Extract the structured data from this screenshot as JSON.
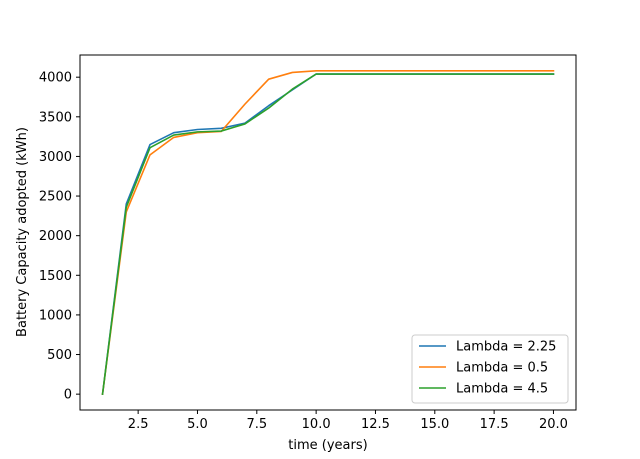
{
  "chart_data": {
    "type": "line",
    "title": "",
    "xlabel": "time (years)",
    "ylabel": "Battery Capacity adopted (kWh)",
    "xlim": [
      0.05,
      20.95
    ],
    "ylim": [
      -200,
      4280
    ],
    "xticks": [
      2.5,
      5.0,
      7.5,
      10.0,
      12.5,
      15.0,
      17.5,
      20.0
    ],
    "xtick_labels": [
      "2.5",
      "5.0",
      "7.5",
      "10.0",
      "12.5",
      "15.0",
      "17.5",
      "20.0"
    ],
    "yticks": [
      0,
      500,
      1000,
      1500,
      2000,
      2500,
      3000,
      3500,
      4000
    ],
    "ytick_labels": [
      "0",
      "500",
      "1000",
      "1500",
      "2000",
      "2500",
      "3000",
      "3500",
      "4000"
    ],
    "grid": false,
    "legend_position": "lower-right",
    "x": [
      1,
      2,
      3,
      4,
      5,
      6,
      7,
      8,
      9,
      10,
      11,
      12,
      13,
      14,
      15,
      16,
      17,
      18,
      19,
      20
    ],
    "series": [
      {
        "name": "Lambda = 2.25",
        "color": "#1f77b4",
        "values": [
          0,
          2400,
          3150,
          3300,
          3340,
          3355,
          3420,
          3640,
          3840,
          4040,
          4040,
          4040,
          4040,
          4040,
          4040,
          4040,
          4040,
          4040,
          4040,
          4040
        ]
      },
      {
        "name": "Lambda = 0.5",
        "color": "#ff7f0e",
        "values": [
          0,
          2300,
          3020,
          3240,
          3300,
          3315,
          3660,
          3975,
          4060,
          4080,
          4080,
          4080,
          4080,
          4080,
          4080,
          4080,
          4080,
          4080,
          4080,
          4080
        ]
      },
      {
        "name": "Lambda = 4.5",
        "color": "#2ca02c",
        "values": [
          0,
          2360,
          3110,
          3270,
          3310,
          3320,
          3410,
          3610,
          3850,
          4040,
          4040,
          4040,
          4040,
          4040,
          4040,
          4040,
          4040,
          4040,
          4040,
          4040
        ]
      }
    ]
  }
}
